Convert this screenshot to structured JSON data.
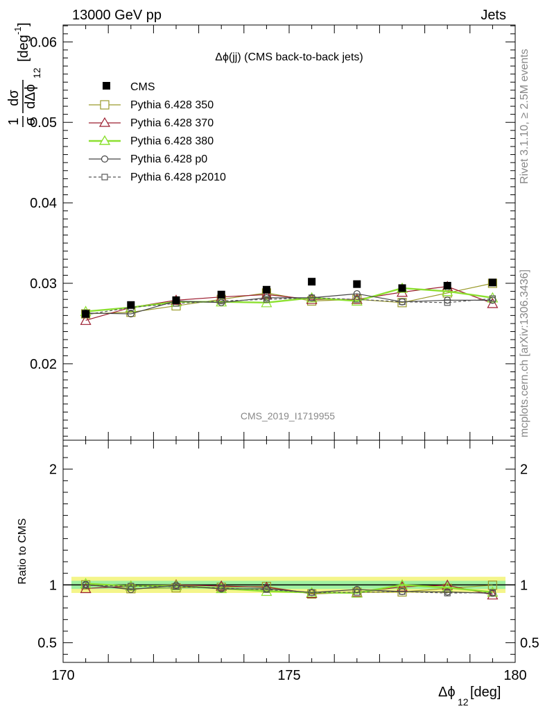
{
  "header": {
    "energy_label": "13000 GeV pp",
    "process_label": "Jets"
  },
  "side": {
    "rivet_label": "Rivet 3.1.10, ≥ 2.5M events",
    "site_label": "mcplots.cern.ch [arXiv:1306.3436]"
  },
  "chart_data": [
    {
      "type": "line",
      "title": "Δϕ(jj) (CMS back-to-back jets)",
      "watermark": "CMS_2019_I1719955",
      "ylabel": "1/σ dσ/dΔϕ_12 [deg^-1]",
      "ylabel_parts": {
        "frac_num": "1",
        "frac_den": "σ",
        "d_num": "dσ",
        "d_den": "dΔϕ",
        "sub": "12",
        "unit": "[deg",
        "unit_exp": "-1",
        "unit_close": "]"
      },
      "xlim": [
        170,
        180
      ],
      "ylim": [
        0.0105,
        0.0621
      ],
      "y_ticks": [
        0.02,
        0.03,
        0.04,
        0.05,
        0.06
      ],
      "y_tick_labels": [
        "0.02",
        "0.03",
        "0.04",
        "0.05",
        "0.06"
      ],
      "x": [
        170.5,
        171.5,
        172.5,
        173.5,
        174.5,
        175.5,
        176.5,
        177.5,
        178.5,
        179.5
      ],
      "series": [
        {
          "name": "CMS",
          "style": "data",
          "color": "#000000",
          "marker": "filled-square",
          "values": [
            0.0262,
            0.0273,
            0.0279,
            0.0286,
            0.0292,
            0.0302,
            0.0299,
            0.0294,
            0.0297,
            0.0301
          ]
        },
        {
          "name": "Pythia 6.428 350",
          "style": "solid",
          "color": "#9a9a2a",
          "marker": "open-square",
          "values": [
            0.0262,
            0.0264,
            0.0272,
            0.028,
            0.0288,
            0.0278,
            0.028,
            0.0276,
            0.0288,
            0.03
          ]
        },
        {
          "name": "Pythia 6.428 370",
          "style": "solid",
          "color": "#9b1c2e",
          "marker": "open-triangle",
          "values": [
            0.0254,
            0.027,
            0.0279,
            0.0283,
            0.0286,
            0.028,
            0.028,
            0.0289,
            0.0296,
            0.0275
          ]
        },
        {
          "name": "Pythia 6.428 380",
          "style": "solid-thick",
          "color": "#8ce030",
          "marker": "open-triangle",
          "values": [
            0.0265,
            0.027,
            0.0277,
            0.0277,
            0.0276,
            0.0282,
            0.0278,
            0.0294,
            0.029,
            0.0282
          ]
        },
        {
          "name": "Pythia 6.428 p0",
          "style": "solid",
          "color": "#444444",
          "marker": "open-circle",
          "values": [
            0.0263,
            0.0262,
            0.0278,
            0.0276,
            0.0282,
            0.0282,
            0.0287,
            0.0277,
            0.0279,
            0.0279
          ]
        },
        {
          "name": "Pythia 6.428 p2010",
          "style": "dashed",
          "color": "#555555",
          "marker": "open-square-small",
          "values": [
            0.0261,
            0.027,
            0.0275,
            0.0278,
            0.028,
            0.0282,
            0.028,
            0.0277,
            0.0276,
            0.0281
          ]
        }
      ]
    },
    {
      "type": "line",
      "ylabel": "Ratio to CMS",
      "xlabel": "Δϕ_12 [deg]",
      "xlabel_parts": {
        "main": "Δϕ",
        "sub": "12",
        "unit": " [deg]"
      },
      "xlim": [
        170,
        180
      ],
      "ylim": [
        0.33,
        2.25
      ],
      "y_ticks": [
        0.5,
        1,
        2
      ],
      "y_tick_labels": [
        "0.5",
        "1",
        "2"
      ],
      "x_ticks": [
        170,
        175,
        180
      ],
      "x_tick_labels": [
        "170",
        "175",
        "180"
      ],
      "band_inner_halfwidth": 0.035,
      "band_outer_halfwidth": 0.07,
      "x": [
        170.5,
        171.5,
        172.5,
        173.5,
        174.5,
        175.5,
        176.5,
        177.5,
        178.5,
        179.5
      ],
      "series": [
        {
          "name": "Pythia 6.428 350",
          "values": [
            1.0,
            0.967,
            0.975,
            0.979,
            0.986,
            0.921,
            0.936,
            0.939,
            0.97,
            0.997
          ]
        },
        {
          "name": "Pythia 6.428 370",
          "values": [
            0.969,
            0.989,
            1.0,
            0.99,
            0.979,
            0.927,
            0.936,
            0.983,
            0.997,
            0.914
          ]
        },
        {
          "name": "Pythia 6.428 380",
          "values": [
            1.011,
            0.989,
            0.993,
            0.969,
            0.945,
            0.934,
            0.93,
            1.0,
            0.976,
            0.937
          ]
        },
        {
          "name": "Pythia 6.428 p0",
          "values": [
            1.004,
            0.96,
            0.996,
            0.965,
            0.966,
            0.934,
            0.96,
            0.942,
            0.939,
            0.927
          ]
        },
        {
          "name": "Pythia 6.428 p2010",
          "values": [
            0.996,
            0.989,
            0.986,
            0.972,
            0.959,
            0.934,
            0.936,
            0.942,
            0.929,
            0.934
          ]
        }
      ]
    }
  ]
}
